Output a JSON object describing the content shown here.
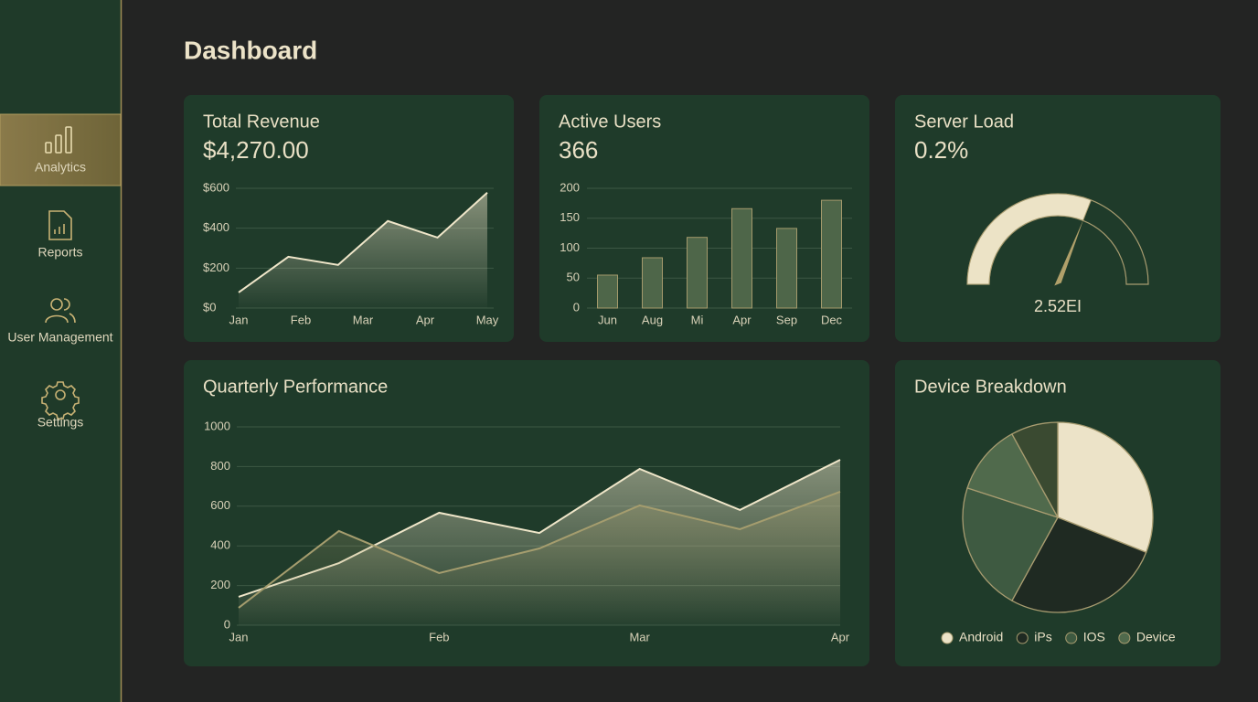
{
  "sidebar": {
    "items": [
      "Analytics",
      "Reports",
      "User Management",
      "Settings"
    ]
  },
  "header": {
    "title": "Dashboard"
  },
  "chart_data": [
    {
      "type": "area",
      "title": "Total Revenue",
      "subtitle": "$4,270.00",
      "x": [
        0,
        0.8,
        1.6,
        2.4,
        3.2,
        4
      ],
      "xlim": [
        0,
        4
      ],
      "xticks": [
        {
          "value": 0,
          "label": "Jan"
        },
        {
          "value": 1,
          "label": "Feb"
        },
        {
          "value": 2,
          "label": "Mar"
        },
        {
          "value": 3,
          "label": "Apr"
        },
        {
          "value": 4,
          "label": "May"
        }
      ],
      "series": [
        {
          "color": "#efe6c9",
          "values": [
            78,
            257,
            216,
            436,
            353,
            578
          ]
        }
      ],
      "ylim": [
        0,
        600
      ],
      "yticks": [
        {
          "value": 0,
          "label": "$0"
        },
        {
          "value": 200,
          "label": "$200"
        },
        {
          "value": 400,
          "label": "$400"
        },
        {
          "value": 600,
          "label": "$600"
        }
      ],
      "grid": true
    },
    {
      "type": "bar",
      "title": "Active Users",
      "subtitle": "366",
      "categories": [
        "Jun",
        "Aug",
        "Mi",
        "Apr",
        "Sep",
        "Dec"
      ],
      "values": [
        55,
        84,
        118,
        166,
        133,
        180
      ],
      "color": "#4e6649",
      "ylim": [
        0,
        200
      ],
      "yticks": [
        0,
        50,
        100,
        150,
        200
      ],
      "grid": true
    },
    {
      "type": "gauge",
      "title": "Server Load",
      "subtitle": "0.2%",
      "label": "2.52EI",
      "value": 62,
      "ylim": [
        0,
        100
      ],
      "color": "#ece3c6"
    },
    {
      "type": "area",
      "title": "Quarterly Performance",
      "categories": [
        "Jan",
        null,
        "Feb",
        null,
        "Mar",
        null,
        "Apr"
      ],
      "series": [
        {
          "color": "#efe6c9",
          "values": [
            143,
            313,
            567,
            465,
            788,
            581,
            834
          ]
        },
        {
          "color": "#a59d6e",
          "values": [
            88,
            475,
            263,
            387,
            604,
            484,
            673
          ]
        }
      ],
      "ylim": [
        0,
        1000
      ],
      "yticks": [
        0,
        200,
        400,
        600,
        800,
        1000
      ],
      "grid": true
    },
    {
      "type": "pie",
      "title": "Device Breakdown",
      "categories": [
        "Android",
        "iPs",
        "IOS",
        "Device",
        null
      ],
      "values": [
        31,
        27,
        22,
        12,
        8
      ],
      "colors": [
        "#ece3c8",
        "#1f2a22",
        "#3e5a41",
        "#506a4c",
        "#3a4a31"
      ]
    }
  ]
}
